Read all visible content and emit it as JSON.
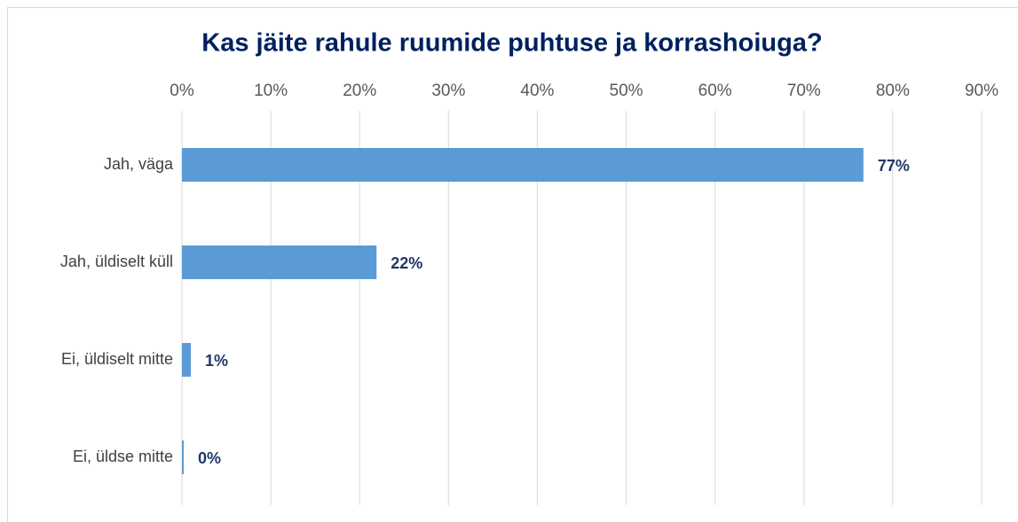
{
  "chart_data": {
    "type": "bar",
    "orientation": "horizontal",
    "title": "Kas jäite rahule ruumide puhtuse ja korrashoiuga?",
    "categories": [
      "Jah, väga",
      "Jah, üldiselt küll",
      "Ei, üldiselt mitte",
      "Ei, üldse mitte"
    ],
    "values": [
      76.7,
      21.9,
      1,
      0.2
    ],
    "value_labels": [
      "77%",
      "22%",
      "1%",
      "0%"
    ],
    "color": "#5b9bd5",
    "xlim": [
      0,
      90
    ],
    "xticks": [
      {
        "value": 0,
        "label": "0%"
      },
      {
        "value": 10,
        "label": "10%"
      },
      {
        "value": 20,
        "label": "20%"
      },
      {
        "value": 30,
        "label": "30%"
      },
      {
        "value": 40,
        "label": "40%"
      },
      {
        "value": 50,
        "label": "50%"
      },
      {
        "value": 60,
        "label": "60%"
      },
      {
        "value": 70,
        "label": "70%"
      },
      {
        "value": 80,
        "label": "80%"
      },
      {
        "value": 90,
        "label": "90%"
      }
    ],
    "grid": true
  }
}
